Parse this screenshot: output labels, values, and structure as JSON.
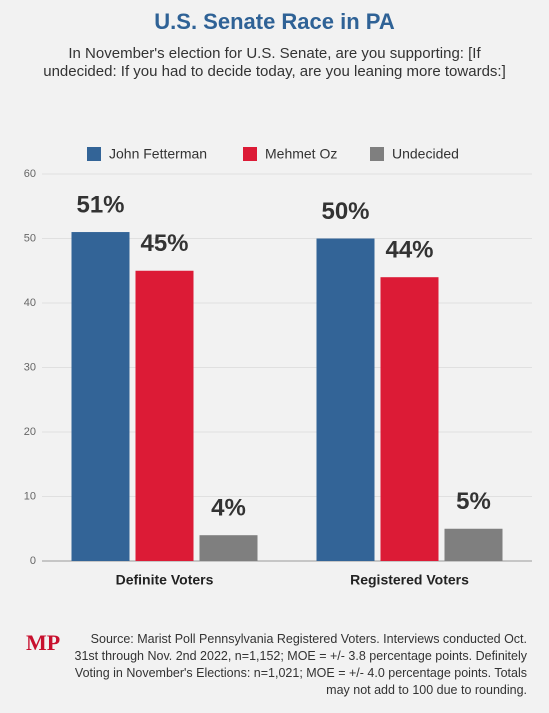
{
  "chart_data": {
    "type": "bar",
    "title": "U.S. Senate Race in PA",
    "subtitle": "In November's election for U.S. Senate, are you supporting: [If undecided: If you had to decide today, are you leaning more towards:]",
    "categories": [
      "Definite Voters",
      "Registered Voters"
    ],
    "series": [
      {
        "name": "John Fetterman",
        "color": "#336497",
        "values": [
          51,
          50
        ],
        "value_labels": [
          "51%",
          "50%"
        ]
      },
      {
        "name": "Mehmet Oz",
        "color": "#dc1b36",
        "values": [
          45,
          44
        ],
        "value_labels": [
          "45%",
          "44%"
        ]
      },
      {
        "name": "Undecided",
        "color": "#7f7f7f",
        "values": [
          4,
          5
        ],
        "value_labels": [
          "4%",
          "5%"
        ]
      }
    ],
    "ylim": [
      0,
      60
    ],
    "yticks": [
      0,
      10,
      20,
      30,
      40,
      50,
      60
    ],
    "grid": true,
    "legend": "top",
    "logo": "MP",
    "source": "Source: Marist Poll Pennsylvania Registered Voters. Interviews conducted Oct. 31st through Nov. 2nd 2022, n=1,152; MOE = +/- 3.8 percentage points. Definitely Voting in November's Elections: n=1,021; MOE = +/- 4.0 percentage points. Totals may not add to 100 due to rounding."
  }
}
